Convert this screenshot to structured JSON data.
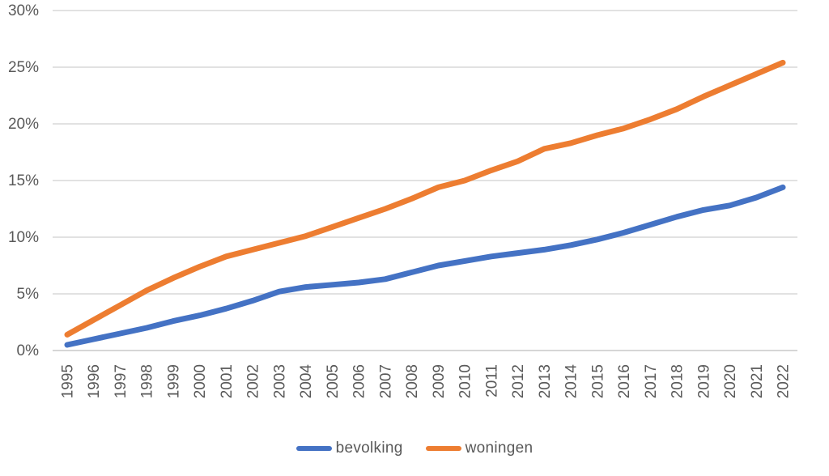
{
  "chart_data": {
    "type": "line",
    "x": [
      1995,
      1996,
      1997,
      1998,
      1999,
      2000,
      2001,
      2002,
      2003,
      2004,
      2005,
      2006,
      2007,
      2008,
      2009,
      2010,
      2011,
      2012,
      2013,
      2014,
      2015,
      2016,
      2017,
      2018,
      2019,
      2020,
      2021,
      2022
    ],
    "series": [
      {
        "name": "bevolking",
        "color": "#4472C4",
        "values": [
          0.5,
          1.0,
          1.5,
          2.0,
          2.6,
          3.1,
          3.7,
          4.4,
          5.2,
          5.6,
          5.8,
          6.0,
          6.3,
          6.9,
          7.5,
          7.9,
          8.3,
          8.6,
          8.9,
          9.3,
          9.8,
          10.4,
          11.1,
          11.8,
          12.4,
          12.8,
          13.5,
          14.4
        ]
      },
      {
        "name": "woningen",
        "color": "#ED7D31",
        "values": [
          1.4,
          2.7,
          4.0,
          5.3,
          6.4,
          7.4,
          8.3,
          8.9,
          9.5,
          10.1,
          10.9,
          11.7,
          12.5,
          13.4,
          14.4,
          15.0,
          15.9,
          16.7,
          17.8,
          18.3,
          19.0,
          19.6,
          20.4,
          21.3,
          22.4,
          23.4,
          24.4,
          25.4
        ]
      }
    ],
    "ylim": [
      0,
      30
    ],
    "ytick_step": 5,
    "ytick_labels": [
      "0%",
      "5%",
      "10%",
      "15%",
      "20%",
      "25%",
      "30%"
    ],
    "xtick_labels": [
      "1995",
      "1996",
      "1997",
      "1998",
      "1999",
      "2000",
      "2001",
      "2002",
      "2003",
      "2004",
      "2005",
      "2006",
      "2007",
      "2008",
      "2009",
      "2010",
      "2011",
      "2012",
      "2013",
      "2014",
      "2015",
      "2016",
      "2017",
      "2018",
      "2019",
      "2020",
      "2021",
      "2022"
    ],
    "grid": "horizontal",
    "legend_position": "bottom-center",
    "colors": {
      "gridline": "#D9D9D9",
      "axis_line": "#C9C9C9",
      "tick_text": "#595959"
    }
  }
}
